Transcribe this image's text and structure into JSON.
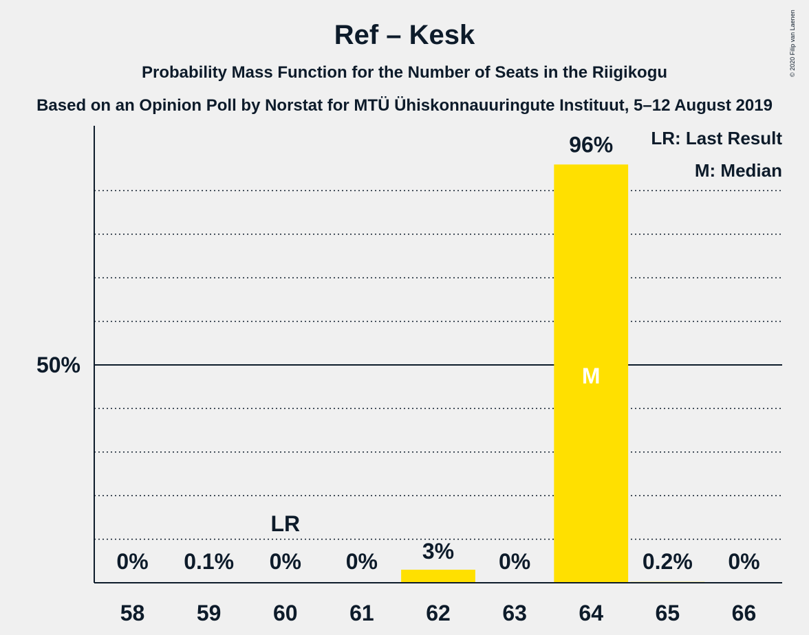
{
  "chart_data": {
    "type": "bar",
    "title": "Ref – Kesk",
    "subtitle": "Probability Mass Function for the Number of Seats in the Riigikogu",
    "source": "Based on an Opinion Poll by Norstat for MTÜ Ühiskonnauuringute Instituut, 5–12 August 2019",
    "categories": [
      "58",
      "59",
      "60",
      "61",
      "62",
      "63",
      "64",
      "65",
      "66"
    ],
    "values": [
      0,
      0.1,
      0,
      0,
      3,
      0,
      96,
      0.2,
      0
    ],
    "value_labels": [
      "0%",
      "0.1%",
      "0%",
      "0%",
      "3%",
      "0%",
      "96%",
      "0.2%",
      "0%"
    ],
    "ylim": [
      0,
      100
    ],
    "y_ticks": [
      {
        "value": 50,
        "label": "50%"
      }
    ],
    "last_result": {
      "category": "60",
      "label": "LR"
    },
    "median": {
      "category": "64",
      "label": "M"
    },
    "legend": [
      "LR: Last Result",
      "M: Median"
    ],
    "bar_color": "#ffe000",
    "copyright": "© 2020 Filip van Laenen"
  }
}
